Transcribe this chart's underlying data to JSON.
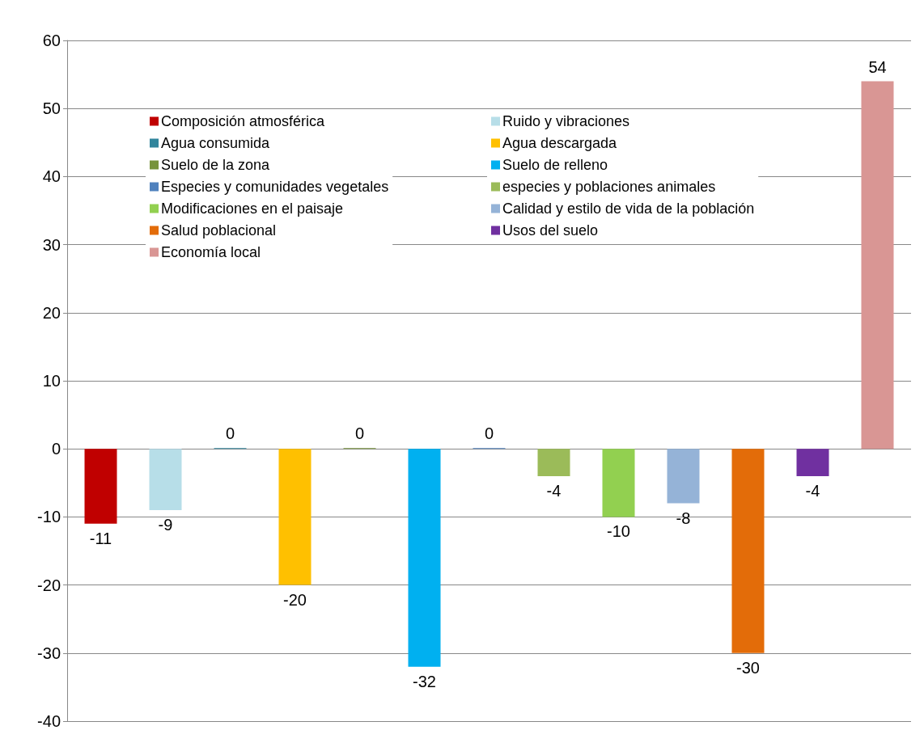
{
  "chart_data": {
    "type": "bar",
    "categories": [
      null
    ],
    "series": [
      {
        "name": "Composición atmosférica",
        "color": "#c00000",
        "values": [
          -11
        ]
      },
      {
        "name": "Ruido y vibraciones",
        "color": "#b7dee8",
        "values": [
          -9
        ]
      },
      {
        "name": "Agua consumida",
        "color": "#31859c",
        "values": [
          0
        ]
      },
      {
        "name": "Agua descargada",
        "color": "#ffc000",
        "values": [
          -20
        ]
      },
      {
        "name": "Suelo de la zona",
        "color": "#77933c",
        "values": [
          0
        ]
      },
      {
        "name": "Suelo de relleno",
        "color": "#00b0f0",
        "values": [
          -32
        ]
      },
      {
        "name": "Especies y comunidades vegetales",
        "color": "#4f81bd",
        "values": [
          0
        ]
      },
      {
        "name": "especies y poblaciones animales",
        "color": "#9bbb59",
        "values": [
          -4
        ]
      },
      {
        "name": "Modificaciones en el paisaje",
        "color": "#92d050",
        "values": [
          -10
        ]
      },
      {
        "name": "Calidad y estilo de vida de la población",
        "color": "#95b3d7",
        "values": [
          -8
        ]
      },
      {
        "name": "Salud poblacional",
        "color": "#e36c09",
        "values": [
          -30
        ]
      },
      {
        "name": "Usos del suelo",
        "color": "#7030a0",
        "values": [
          -4
        ]
      },
      {
        "name": "Economía local",
        "color": "#d99694",
        "values": [
          54
        ]
      }
    ],
    "ylim": [
      -40,
      60
    ],
    "yticks": [
      -40,
      -30,
      -20,
      -10,
      0,
      10,
      20,
      30,
      40,
      50,
      60
    ],
    "grid": "y",
    "data_labels": true,
    "legend": "top"
  }
}
